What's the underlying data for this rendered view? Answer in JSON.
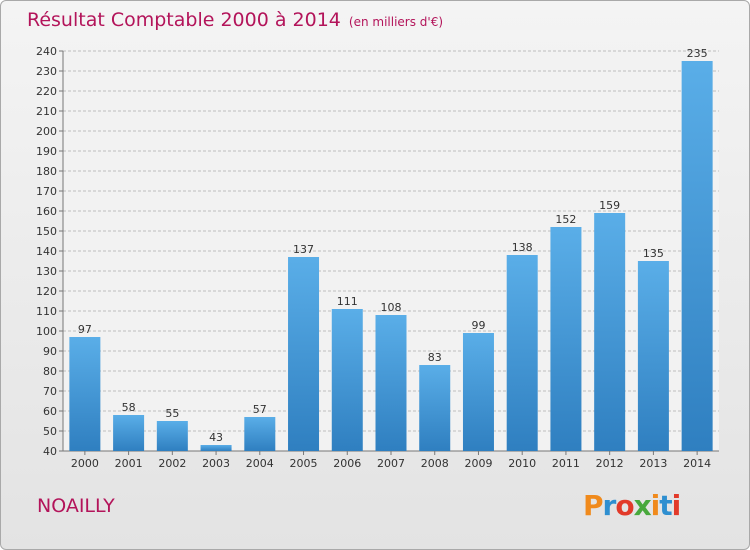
{
  "header": {
    "title": "Résultat Comptable 2000 à 2014",
    "subtitle": "(en milliers d'€)"
  },
  "footer": {
    "commune": "NOAILLY",
    "logo_text": "Proxiti",
    "logo_colors": [
      "#f08a1c",
      "#2f8fd0",
      "#e23a2a",
      "#48a83c",
      "#f08a1c",
      "#2f8fd0",
      "#e23a2a"
    ]
  },
  "colors": {
    "title": "#b3145a",
    "bar_light": "#5aaee8",
    "bar_dark": "#2f7fc0",
    "grid": "#bdbdbd",
    "axis_text": "#333333"
  },
  "chart_data": {
    "type": "bar",
    "title": "Résultat Comptable 2000 à 2014",
    "subtitle": "(en milliers d'€)",
    "categories": [
      "2000",
      "2001",
      "2002",
      "2003",
      "2004",
      "2005",
      "2006",
      "2007",
      "2008",
      "2009",
      "2010",
      "2011",
      "2012",
      "2013",
      "2014"
    ],
    "values": [
      97,
      58,
      55,
      43,
      57,
      137,
      111,
      108,
      83,
      99,
      138,
      152,
      159,
      135,
      235
    ],
    "ylim": [
      40,
      240
    ],
    "ytick_step": 10,
    "grid": true,
    "data_labels": true
  }
}
